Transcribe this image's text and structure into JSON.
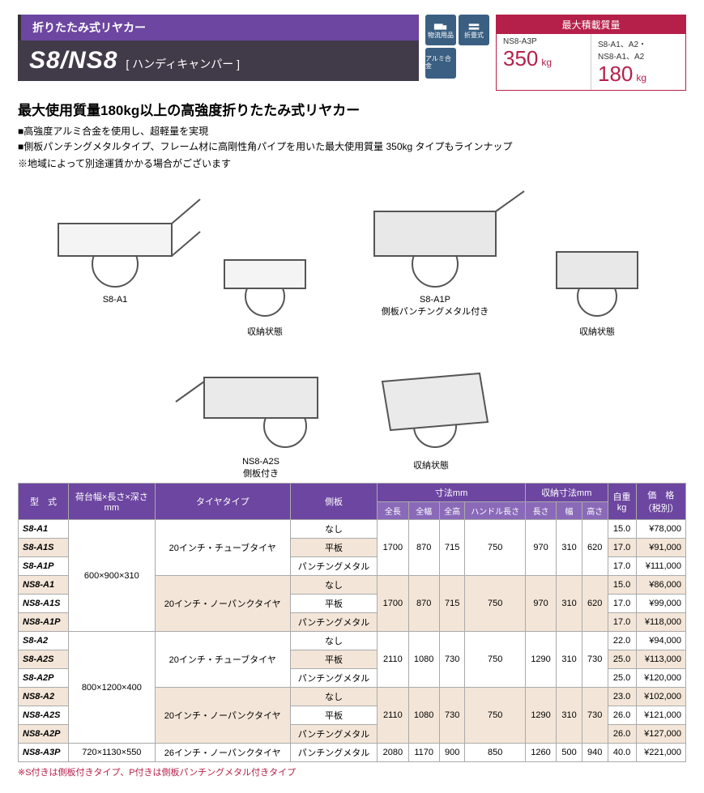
{
  "header": {
    "ribbon": "折りたたみ式リヤカー",
    "model": "S8/NS8",
    "subtitle": "[ ハンディキャンパー ]"
  },
  "badges": {
    "b1": "物流用品",
    "b2": "折畳式",
    "b3": "アルミ合金"
  },
  "capacity": {
    "title": "最大積載質量",
    "left_label": "NS8-A3P",
    "left_value": "350",
    "left_unit": "kg",
    "right_label": "S8-A1、A2・\nNS8-A1、A2",
    "right_value": "180",
    "right_unit": "kg"
  },
  "lead": "最大使用質量180kg以上の高強度折りたたみ式リヤカー",
  "bullet1": "■高強度アルミ合金を使用し、超軽量を実現",
  "bullet2": "■側板パンチングメタルタイプ、フレーム材に高剛性角パイプを用いた最大使用質量 350kg タイプもラインナップ",
  "note": "※地域によって別途運賃かかる場合がございます",
  "gallery": {
    "p1": "S8-A1",
    "p2": "収納状態",
    "p3": "S8-A1P\n側板パンチングメタル付き",
    "p4": "収納状態",
    "p5": "NS8-A2S\n側板付き",
    "p6": "収納状態"
  },
  "table": {
    "headers": {
      "model": "型　式",
      "bed": "荷台幅×長さ×深さ\nmm",
      "tire": "タイヤタイプ",
      "side": "側板",
      "dims": "寸法mm",
      "dims_l": "全長",
      "dims_w": "全幅",
      "dims_h": "全高",
      "dims_handle": "ハンドル長さ",
      "stow": "収納寸法mm",
      "stow_l": "長さ",
      "stow_w": "幅",
      "stow_h": "高さ",
      "weight": "自重\nkg",
      "price": "価　格\n（税別）"
    },
    "rows": [
      {
        "m": "S8-A1",
        "bed": "",
        "tire": "",
        "side": "なし",
        "l": "",
        "w": "",
        "h": "",
        "hl": "",
        "sl": "",
        "sw": "",
        "sh": "",
        "wt": "15.0",
        "pr": "¥78,000",
        "alt": 0
      },
      {
        "m": "S8-A1S",
        "bed": "",
        "tire": "20インチ・チューブタイヤ",
        "side": "平板",
        "l": "1700",
        "w": "870",
        "h": "715",
        "hl": "750",
        "sl": "970",
        "sw": "310",
        "sh": "620",
        "wt": "17.0",
        "pr": "¥91,000",
        "alt": 1
      },
      {
        "m": "S8-A1P",
        "bed": "600×900×310",
        "tire": "",
        "side": "パンチングメタル",
        "l": "",
        "w": "",
        "h": "",
        "hl": "",
        "sl": "",
        "sw": "",
        "sh": "",
        "wt": "17.0",
        "pr": "¥111,000",
        "alt": 0
      },
      {
        "m": "NS8-A1",
        "bed": "",
        "tire": "",
        "side": "なし",
        "l": "",
        "w": "",
        "h": "",
        "hl": "",
        "sl": "",
        "sw": "",
        "sh": "",
        "wt": "15.0",
        "pr": "¥86,000",
        "alt": 1
      },
      {
        "m": "NS8-A1S",
        "bed": "",
        "tire": "20インチ・ノーパンクタイヤ",
        "side": "平板",
        "l": "1700",
        "w": "870",
        "h": "715",
        "hl": "750",
        "sl": "970",
        "sw": "310",
        "sh": "620",
        "wt": "17.0",
        "pr": "¥99,000",
        "alt": 0
      },
      {
        "m": "NS8-A1P",
        "bed": "",
        "tire": "",
        "side": "パンチングメタル",
        "l": "",
        "w": "",
        "h": "",
        "hl": "",
        "sl": "",
        "sw": "",
        "sh": "",
        "wt": "17.0",
        "pr": "¥118,000",
        "alt": 1
      },
      {
        "m": "S8-A2",
        "bed": "",
        "tire": "",
        "side": "なし",
        "l": "",
        "w": "",
        "h": "",
        "hl": "",
        "sl": "",
        "sw": "",
        "sh": "",
        "wt": "22.0",
        "pr": "¥94,000",
        "alt": 0
      },
      {
        "m": "S8-A2S",
        "bed": "",
        "tire": "20インチ・チューブタイヤ",
        "side": "平板",
        "l": "2110",
        "w": "1080",
        "h": "730",
        "hl": "750",
        "sl": "1290",
        "sw": "310",
        "sh": "730",
        "wt": "25.0",
        "pr": "¥113,000",
        "alt": 1
      },
      {
        "m": "S8-A2P",
        "bed": "800×1200×400",
        "tire": "",
        "side": "パンチングメタル",
        "l": "",
        "w": "",
        "h": "",
        "hl": "",
        "sl": "",
        "sw": "",
        "sh": "",
        "wt": "25.0",
        "pr": "¥120,000",
        "alt": 0
      },
      {
        "m": "NS8-A2",
        "bed": "",
        "tire": "",
        "side": "なし",
        "l": "",
        "w": "",
        "h": "",
        "hl": "",
        "sl": "",
        "sw": "",
        "sh": "",
        "wt": "23.0",
        "pr": "¥102,000",
        "alt": 1
      },
      {
        "m": "NS8-A2S",
        "bed": "",
        "tire": "20インチ・ノーパンクタイヤ",
        "side": "平板",
        "l": "2110",
        "w": "1080",
        "h": "730",
        "hl": "750",
        "sl": "1290",
        "sw": "310",
        "sh": "730",
        "wt": "26.0",
        "pr": "¥121,000",
        "alt": 0
      },
      {
        "m": "NS8-A2P",
        "bed": "",
        "tire": "",
        "side": "パンチングメタル",
        "l": "",
        "w": "",
        "h": "",
        "hl": "",
        "sl": "",
        "sw": "",
        "sh": "",
        "wt": "26.0",
        "pr": "¥127,000",
        "alt": 1
      },
      {
        "m": "NS8-A3P",
        "bed": "720×1130×550",
        "tire": "26インチ・ノーパンクタイヤ",
        "side": "パンチングメタル",
        "l": "2080",
        "w": "1170",
        "h": "900",
        "hl": "850",
        "sl": "1260",
        "sw": "500",
        "sh": "940",
        "wt": "40.0",
        "pr": "¥221,000",
        "alt": 0
      }
    ],
    "layout": {
      "bed_span": [
        3,
        6,
        13
      ],
      "tire_span": [
        2,
        5,
        8,
        11,
        13
      ],
      "dim_span": [
        2,
        5,
        8,
        11,
        13
      ]
    }
  },
  "footnote": "※S付きは側板付きタイプ、P付きは側板パンチングメタル付きタイプ"
}
